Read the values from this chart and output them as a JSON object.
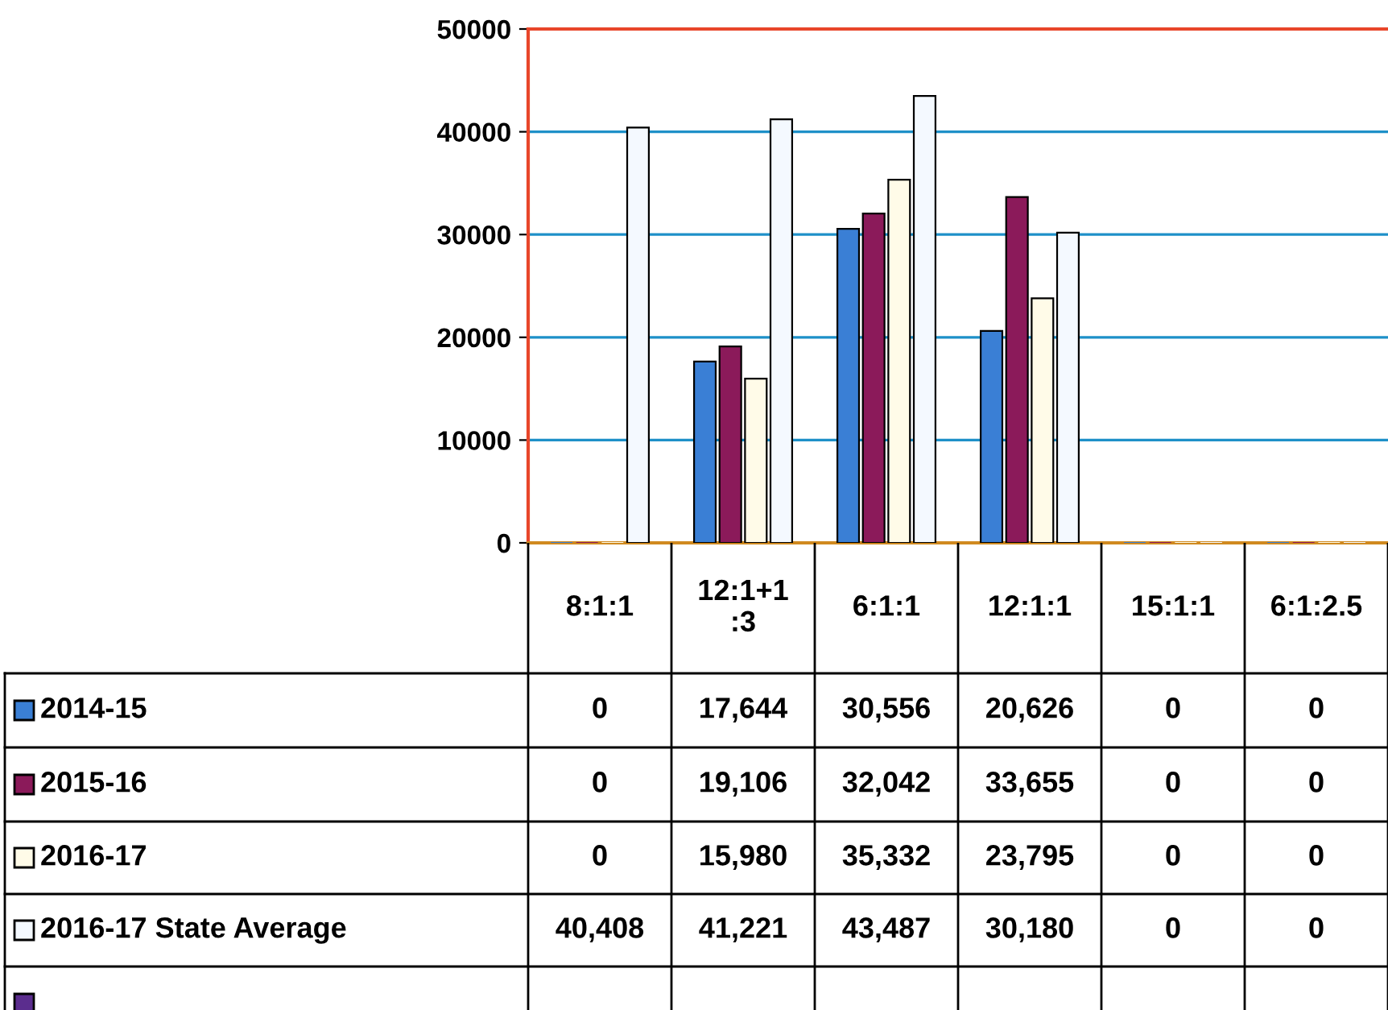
{
  "chart_data": {
    "type": "bar",
    "categories": [
      "8:1:1",
      "12:1+1\n:3",
      "6:1:1",
      "12:1:1",
      "15:1:1",
      "6:1:2.5"
    ],
    "series": [
      {
        "name": "2014-15",
        "color": "#3a7fd5",
        "values": [
          0,
          17644,
          30556,
          20626,
          0,
          0
        ],
        "value_labels": [
          "0",
          "17,644",
          "30,556",
          "20,626",
          "0",
          "0"
        ]
      },
      {
        "name": "2015-16",
        "color": "#8b1a5a",
        "values": [
          0,
          19106,
          32042,
          33655,
          0,
          0
        ],
        "value_labels": [
          "0",
          "19,106",
          "32,042",
          "33,655",
          "0",
          "0"
        ]
      },
      {
        "name": "2016-17",
        "color": "#fffbe8",
        "values": [
          0,
          15980,
          35332,
          23795,
          0,
          0
        ],
        "value_labels": [
          "0",
          "15,980",
          "35,332",
          "23,795",
          "0",
          "0"
        ]
      },
      {
        "name": "2016-17 State Average",
        "color": "#f4f9ff",
        "values": [
          40408,
          41221,
          43487,
          30180,
          0,
          0
        ],
        "value_labels": [
          "40,408",
          "41,221",
          "43,487",
          "30,180",
          "0",
          "0"
        ]
      },
      {
        "color": "#5b2d8e",
        "values": [
          null,
          null,
          null,
          null,
          null,
          null
        ]
      }
    ],
    "ylim": [
      0,
      50000
    ],
    "yticks": [
      0,
      10000,
      20000,
      30000,
      40000,
      50000
    ],
    "grid": "y",
    "legend": "bottom left"
  }
}
